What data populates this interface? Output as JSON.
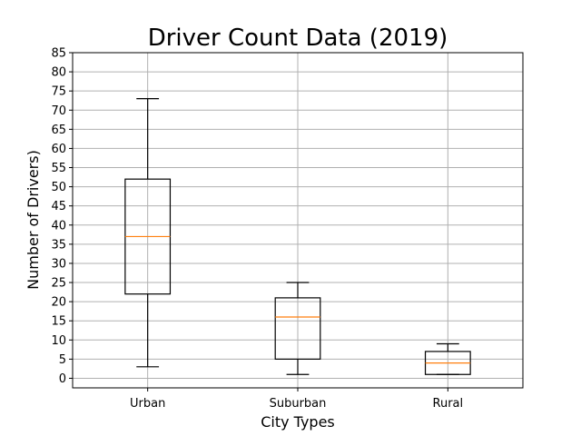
{
  "chart_data": {
    "type": "box",
    "title": "Driver Count Data (2019)",
    "xlabel": "City Types",
    "ylabel": "Number of Drivers)",
    "categories": [
      "Urban",
      "Suburban",
      "Rural"
    ],
    "boxes": [
      {
        "name": "Urban",
        "whisker_low": 3,
        "q1": 22,
        "median": 37,
        "q3": 52,
        "whisker_high": 73
      },
      {
        "name": "Suburban",
        "whisker_low": 1,
        "q1": 5,
        "median": 16,
        "q3": 21,
        "whisker_high": 25
      },
      {
        "name": "Rural",
        "whisker_low": 1,
        "q1": 1,
        "median": 4,
        "q3": 7,
        "whisker_high": 9
      }
    ],
    "yticks": [
      0,
      5,
      10,
      15,
      20,
      25,
      30,
      35,
      40,
      45,
      50,
      55,
      60,
      65,
      70,
      75,
      80,
      85
    ],
    "ylim": [
      -2.5,
      85
    ],
    "grid": true,
    "colors": {
      "box": "#000000",
      "median": "#ff7f0e",
      "grid": "#b0b0b0"
    }
  }
}
